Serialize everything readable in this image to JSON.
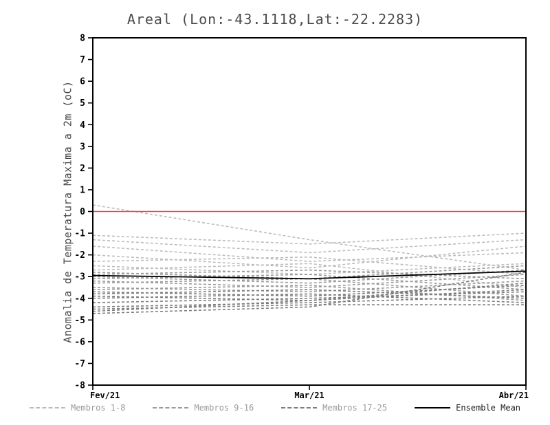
{
  "title": "Areal (Lon:-43.1118,Lat:-22.2283)",
  "ylabel": "Anomalia de Temperatura Maxima a 2m (oC)",
  "legend": {
    "items": [
      {
        "label": "Membros 1-8",
        "line_color": "#bcbcbc",
        "label_color": "#9a9a9a",
        "dashed": true
      },
      {
        "label": "Membros 9-16",
        "line_color": "#9a9a9a",
        "label_color": "#9a9a9a",
        "dashed": true
      },
      {
        "label": "Membros 17-25",
        "line_color": "#7c7c7c",
        "label_color": "#9a9a9a",
        "dashed": true
      },
      {
        "label": "Ensemble Mean",
        "line_color": "#000000",
        "label_color": "#1a1a1a",
        "dashed": false
      }
    ]
  },
  "chart_data": {
    "type": "line",
    "title": "Areal (Lon:-43.1118,Lat:-22.2283)",
    "ylabel": "Anomalia de Temperatura Maxima a 2m (oC)",
    "x_categories": [
      "Fev/21",
      "Mar/21",
      "Abr/21"
    ],
    "ylim": [
      -8,
      8
    ],
    "ytick_step": 1,
    "grid": false,
    "axis_color": "#000000",
    "zero_line": {
      "y": 0,
      "color": "#fa3c3c"
    },
    "legend_position": "bottom",
    "series_groups": [
      {
        "name": "Membros 1-8",
        "color": "#bcbcbc",
        "dashed": true,
        "members": [
          [
            0.3,
            -1.3,
            -2.7
          ],
          [
            -1.1,
            -1.5,
            -1.0
          ],
          [
            -1.3,
            -1.9,
            -1.3
          ],
          [
            -1.6,
            -2.3,
            -1.9
          ],
          [
            -2.0,
            -2.6,
            -1.6
          ],
          [
            -2.3,
            -2.1,
            -2.9
          ],
          [
            -2.5,
            -2.9,
            -2.4
          ],
          [
            -2.7,
            -2.4,
            -3.5
          ]
        ]
      },
      {
        "name": "Membros 9-16",
        "color": "#9a9a9a",
        "dashed": true,
        "members": [
          [
            -2.8,
            -3.1,
            -2.5
          ],
          [
            -2.9,
            -2.7,
            -3.1
          ],
          [
            -3.0,
            -3.3,
            -2.7
          ],
          [
            -3.1,
            -2.9,
            -3.6
          ],
          [
            -3.2,
            -3.5,
            -2.9
          ],
          [
            -3.3,
            -3.1,
            -3.9
          ],
          [
            -3.5,
            -3.7,
            -3.2
          ],
          [
            -3.6,
            -3.4,
            -4.1
          ]
        ]
      },
      {
        "name": "Membros 17-25",
        "color": "#7c7c7c",
        "dashed": true,
        "members": [
          [
            -3.7,
            -3.9,
            -3.4
          ],
          [
            -3.8,
            -3.6,
            -4.0
          ],
          [
            -3.9,
            -4.1,
            -3.6
          ],
          [
            -4.0,
            -3.8,
            -4.2
          ],
          [
            -4.2,
            -4.0,
            -3.7
          ],
          [
            -4.4,
            -4.2,
            -3.9
          ],
          [
            -4.5,
            -4.3,
            -4.3
          ],
          [
            -4.6,
            -4.1,
            -3.3
          ],
          [
            -4.7,
            -4.4,
            -2.8
          ]
        ]
      },
      {
        "name": "Ensemble Mean",
        "color": "#000000",
        "dashed": false,
        "members": [
          [
            -2.95,
            -3.1,
            -2.75
          ]
        ]
      }
    ]
  }
}
